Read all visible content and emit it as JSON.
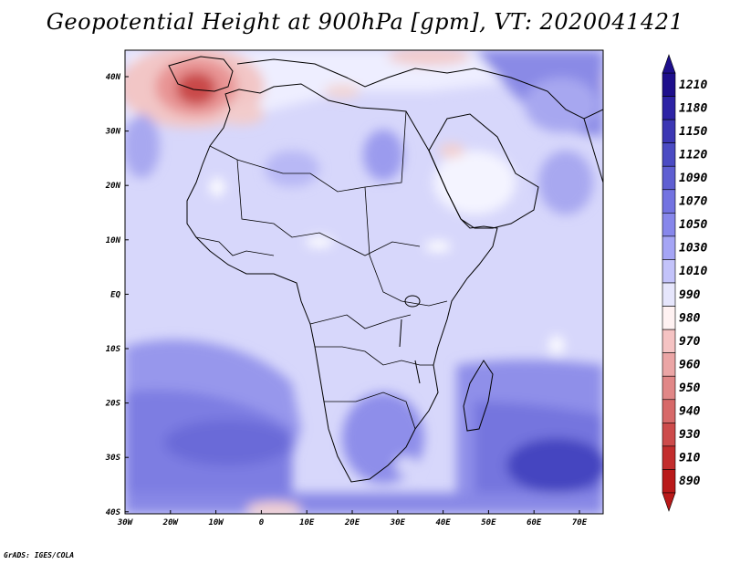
{
  "title": "Geopotential Height at 900hPa [gpm], VT: 2020041421",
  "credit": "GrADS: IGES/COLA",
  "map": {
    "lon_ticks": [
      "30W",
      "20W",
      "10W",
      "0",
      "10E",
      "20E",
      "30E",
      "40E",
      "50E",
      "60E",
      "70E"
    ],
    "lat_ticks": [
      "40N",
      "30N",
      "20N",
      "10N",
      "EQ",
      "10S",
      "20S",
      "30S",
      "40S"
    ]
  },
  "colorbar": {
    "levels": [
      "1210",
      "1180",
      "1150",
      "1120",
      "1090",
      "1070",
      "1050",
      "1030",
      "1010",
      "990",
      "980",
      "970",
      "960",
      "950",
      "940",
      "930",
      "910",
      "890"
    ],
    "colors": [
      "#1e0f8c",
      "#2d23a5",
      "#3c37b4",
      "#4b4bc3",
      "#5f5fd2",
      "#7373e1",
      "#8787eb",
      "#a5a5f5",
      "#c3c3fa",
      "#e6e6fc",
      "#fff2f2",
      "#f5c3c3",
      "#eba5a5",
      "#e18787",
      "#d76969",
      "#cd4b4b",
      "#c32d2d",
      "#b91919"
    ]
  }
}
